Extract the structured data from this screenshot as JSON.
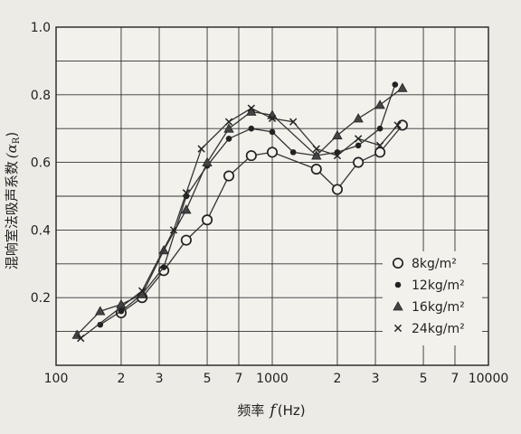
{
  "chart_data": {
    "type": "line",
    "xlabel_prefix": "频率",
    "xlabel_var": "f",
    "xlabel_unit": "(Hz)",
    "ylabel": "混响室法吸声系数",
    "ylabel_symbol": "(α",
    "ylabel_sub": "R",
    "ylabel_close": ")",
    "xscale": "log",
    "xlim": [
      100,
      10000
    ],
    "ylim": [
      0,
      1.0
    ],
    "grid": true,
    "legend_position": "bottom-right",
    "x_ticks": [
      {
        "value": 100,
        "label": "100"
      },
      {
        "value": 200,
        "label": "2"
      },
      {
        "value": 300,
        "label": "3"
      },
      {
        "value": 500,
        "label": "5"
      },
      {
        "value": 700,
        "label": "7"
      },
      {
        "value": 1000,
        "label": "1000"
      },
      {
        "value": 2000,
        "label": "2"
      },
      {
        "value": 3000,
        "label": "3"
      },
      {
        "value": 5000,
        "label": "5"
      },
      {
        "value": 7000,
        "label": "7"
      },
      {
        "value": 10000,
        "label": "10000"
      }
    ],
    "y_ticks": [
      {
        "value": 0.2,
        "label": "0.2"
      },
      {
        "value": 0.4,
        "label": "0.4"
      },
      {
        "value": 0.6,
        "label": "0.6"
      },
      {
        "value": 0.8,
        "label": "0.8"
      },
      {
        "value": 1.0,
        "label": "1.0"
      }
    ],
    "series": [
      {
        "name": "8kg/m²",
        "marker": "open-circle",
        "x": [
          200,
          250,
          315,
          400,
          500,
          630,
          800,
          1000,
          1600,
          2000,
          2500,
          3150,
          4000
        ],
        "y": [
          0.155,
          0.2,
          0.28,
          0.37,
          0.43,
          0.56,
          0.62,
          0.63,
          0.58,
          0.52,
          0.6,
          0.63,
          0.71
        ]
      },
      {
        "name": "12kg/m²",
        "marker": "filled-dot",
        "x": [
          160,
          200,
          250,
          315,
          400,
          500,
          630,
          800,
          1000,
          1250,
          1600,
          2000,
          2500,
          3150,
          3700
        ],
        "y": [
          0.12,
          0.16,
          0.21,
          0.29,
          0.5,
          0.59,
          0.67,
          0.7,
          0.69,
          0.63,
          0.62,
          0.63,
          0.65,
          0.7,
          0.83
        ]
      },
      {
        "name": "16kg/m²",
        "marker": "triangle",
        "x": [
          125,
          160,
          200,
          250,
          315,
          400,
          500,
          630,
          800,
          1000,
          1600,
          2000,
          2500,
          3150,
          4000
        ],
        "y": [
          0.09,
          0.16,
          0.18,
          0.21,
          0.34,
          0.46,
          0.6,
          0.7,
          0.75,
          0.74,
          0.62,
          0.68,
          0.73,
          0.77,
          0.82
        ]
      },
      {
        "name": "24kg/m²",
        "marker": "cross",
        "x": [
          130,
          250,
          350,
          400,
          470,
          630,
          800,
          1000,
          1250,
          1600,
          2000,
          2500,
          3150,
          3800
        ],
        "y": [
          0.08,
          0.22,
          0.4,
          0.51,
          0.64,
          0.72,
          0.76,
          0.73,
          0.72,
          0.64,
          0.62,
          0.67,
          0.65,
          0.71
        ]
      }
    ]
  }
}
